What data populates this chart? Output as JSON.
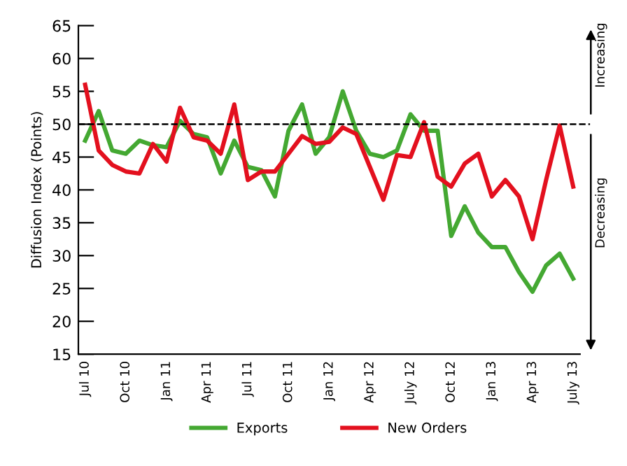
{
  "chart_data": {
    "type": "line",
    "ylabel": "Diffusion Index (Points)",
    "categories": [
      "Jul 10",
      null,
      null,
      "Oct 10",
      null,
      null,
      "Jan 11",
      null,
      null,
      "Apr 11",
      null,
      null,
      "Jul 11",
      null,
      null,
      "Oct 11",
      null,
      null,
      "Jan 12",
      null,
      null,
      "Apr 12",
      null,
      null,
      "July 12",
      null,
      null,
      "Oct 12",
      null,
      null,
      "Jan 13",
      null,
      null,
      "Apr 13",
      null,
      null,
      "July 13"
    ],
    "series": [
      {
        "name": "Exports",
        "color": "#44a832",
        "values": [
          47.5,
          52,
          46,
          45.5,
          47.5,
          46.8,
          46.5,
          50.5,
          48.5,
          48,
          42.5,
          47.5,
          43.5,
          43,
          39,
          49,
          53,
          45.5,
          48,
          55,
          49,
          45.5,
          45,
          46,
          51.5,
          49,
          49,
          33,
          37.5,
          33.5,
          31.3,
          31.3,
          27.5,
          24.5,
          28.5,
          30.3,
          26.5
        ]
      },
      {
        "name": "New Orders",
        "color": "#e3101e",
        "values": [
          56,
          46,
          43.8,
          42.8,
          42.5,
          47,
          44.3,
          52.5,
          48,
          47.5,
          45.5,
          53,
          41.5,
          42.8,
          42.8,
          45.5,
          48.2,
          47,
          47.3,
          49.5,
          48.5,
          43.5,
          38.5,
          45.3,
          45,
          50.3,
          42,
          40.5,
          44,
          45.5,
          39,
          41.5,
          39,
          32.5,
          41.5,
          49.8,
          40.5
        ]
      }
    ],
    "ylim": [
      15,
      65
    ],
    "yticks": [
      15,
      20,
      25,
      30,
      35,
      40,
      45,
      50,
      55,
      60,
      65
    ],
    "ref_lines": [
      {
        "axis": "y",
        "value": 50,
        "color": "#000000",
        "line_style": "dashed"
      }
    ],
    "annotations": [
      "Increasing",
      "Decreasing"
    ],
    "legend": "bottom",
    "grid": false,
    "marker": "none",
    "line_style": "solid"
  }
}
